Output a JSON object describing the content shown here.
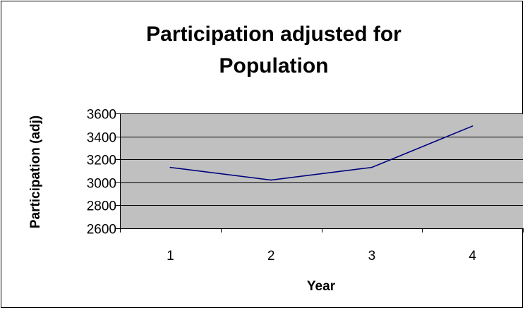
{
  "chart_data": {
    "type": "line",
    "title_line1": "Participation adjusted for",
    "title_line2": "Population",
    "xlabel": "Year",
    "ylabel": "Participation (adj)",
    "x": [
      "1",
      "2",
      "3",
      "4"
    ],
    "series": [
      {
        "values": [
          3130,
          3020,
          3130,
          3490
        ]
      }
    ],
    "ylim": [
      2600,
      3600
    ],
    "yticks": [
      "2600",
      "2800",
      "3000",
      "3200",
      "3400",
      "3600"
    ],
    "grid": true,
    "legend": "none",
    "colors": {
      "plot_background": "#c0c0c0",
      "line": "#000080",
      "gridline": "#000000"
    }
  }
}
